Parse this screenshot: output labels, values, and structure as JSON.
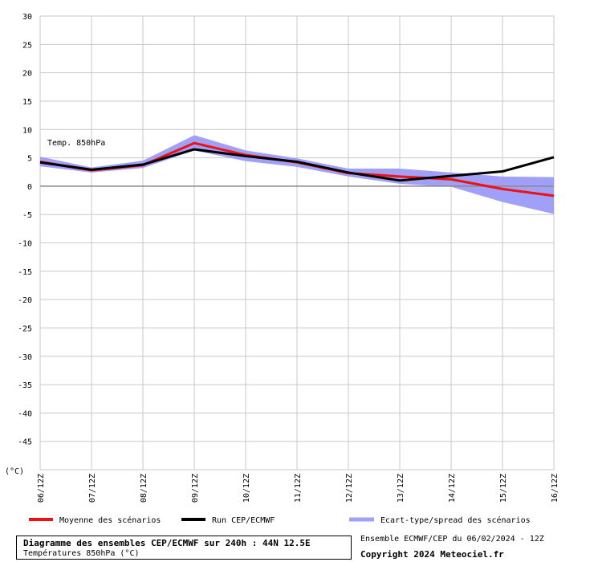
{
  "chart_data": {
    "type": "line",
    "series_label": "Temp. 850hPa",
    "y_unit_label": "(°C)",
    "x": [
      "06/12Z",
      "07/12Z",
      "08/12Z",
      "09/12Z",
      "10/12Z",
      "11/12Z",
      "12/12Z",
      "13/12Z",
      "14/12Z",
      "15/12Z",
      "16/12Z"
    ],
    "ylim": [
      -50,
      30
    ],
    "yticks": [
      30,
      25,
      20,
      15,
      10,
      5,
      0,
      -5,
      -10,
      -15,
      -20,
      -25,
      -30,
      -35,
      -40,
      -45
    ],
    "grid": true,
    "series": [
      {
        "name": "Moyenne des scénarios",
        "color": "#ee1111",
        "values": [
          4.3,
          2.8,
          3.7,
          7.6,
          5.5,
          4.2,
          2.3,
          1.7,
          1.2,
          -0.5,
          -1.7
        ]
      },
      {
        "name": "Run CEP/ECMWF",
        "color": "#000000",
        "values": [
          4.2,
          2.9,
          3.8,
          6.5,
          5.3,
          4.3,
          2.4,
          1.0,
          1.8,
          2.6,
          5.1
        ]
      }
    ],
    "band": {
      "name": "Ecart-type/spread des scénarios",
      "color": "#a0a0f8",
      "upper": [
        5.2,
        3.3,
        4.5,
        9.0,
        6.3,
        4.9,
        3.1,
        3.1,
        2.4,
        1.7,
        1.6
      ],
      "lower": [
        3.5,
        2.4,
        3.2,
        6.3,
        4.4,
        3.4,
        1.7,
        0.4,
        -0.1,
        -2.8,
        -4.9
      ]
    }
  },
  "footer": {
    "title": "Diagramme des ensembles CEP/ECMWF sur 240h : 44N 12.5E",
    "subtitle": "Températures 850hPa (°C)",
    "run": "Ensemble ECMWF/CEP du 06/02/2024 - 12Z",
    "copyright": "Copyright 2024 Meteociel.fr"
  }
}
